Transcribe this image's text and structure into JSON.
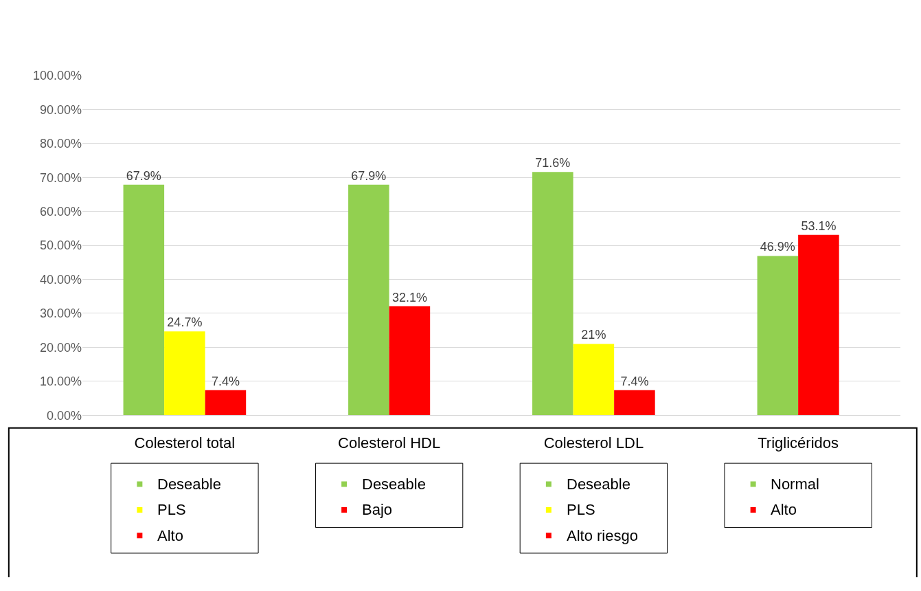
{
  "chart_data": {
    "type": "bar",
    "categories": [
      "Colesterol total",
      "Colesterol HDL",
      "Colesterol LDL",
      "Triglicéridos"
    ],
    "series": [
      {
        "name": "Deseable",
        "color": "#92d050",
        "values": [
          67.9,
          null,
          null,
          null
        ],
        "value_labels": [
          "67.9%",
          null,
          null,
          null
        ]
      },
      {
        "name": "PLS",
        "color": "#ffff00",
        "values": [
          24.7,
          null,
          null,
          null
        ],
        "value_labels": [
          "24.7%",
          null,
          null,
          null
        ]
      },
      {
        "name": "Alto",
        "color": "#ff0000",
        "values": [
          7.4,
          null,
          null,
          null
        ],
        "value_labels": [
          "7.4%",
          null,
          null,
          null
        ]
      },
      {
        "name": "Deseable",
        "color": "#92d050",
        "values": [
          null,
          67.9,
          null,
          null
        ],
        "value_labels": [
          null,
          "67.9%",
          null,
          null
        ]
      },
      {
        "name": "Bajo",
        "color": "#ff0000",
        "values": [
          null,
          32.1,
          null,
          null
        ],
        "value_labels": [
          null,
          "32.1%",
          null,
          null
        ]
      },
      {
        "name": "Deseable",
        "color": "#92d050",
        "values": [
          null,
          null,
          71.6,
          null
        ],
        "value_labels": [
          null,
          null,
          "71.6%",
          null
        ]
      },
      {
        "name": "PLS",
        "color": "#ffff00",
        "values": [
          null,
          null,
          21,
          null
        ],
        "value_labels": [
          null,
          null,
          "21%",
          null
        ]
      },
      {
        "name": "Alto riesgo",
        "color": "#ff0000",
        "values": [
          null,
          null,
          7.4,
          null
        ],
        "value_labels": [
          null,
          null,
          "7.4%",
          null
        ]
      },
      {
        "name": "Normal",
        "color": "#92d050",
        "values": [
          null,
          null,
          null,
          46.9
        ],
        "value_labels": [
          null,
          null,
          null,
          "46.9%"
        ]
      },
      {
        "name": "Alto",
        "color": "#ff0000",
        "values": [
          null,
          null,
          null,
          53.1
        ],
        "value_labels": [
          null,
          null,
          null,
          "53.1%"
        ]
      }
    ],
    "ylim": [
      0,
      100
    ],
    "yticks": [
      {
        "value": 0,
        "label": "0.00%"
      },
      {
        "value": 10,
        "label": "10.00%"
      },
      {
        "value": 20,
        "label": "20.00%"
      },
      {
        "value": 30,
        "label": "30.00%"
      },
      {
        "value": 40,
        "label": "40.00%"
      },
      {
        "value": 50,
        "label": "50.00%"
      },
      {
        "value": 60,
        "label": "60.00%"
      },
      {
        "value": 70,
        "label": "70.00%"
      },
      {
        "value": 80,
        "label": "80.00%"
      },
      {
        "value": 90,
        "label": "90.00%"
      },
      {
        "value": 100,
        "label": "100.00%"
      }
    ],
    "grid": "y",
    "legend": "bottom"
  }
}
